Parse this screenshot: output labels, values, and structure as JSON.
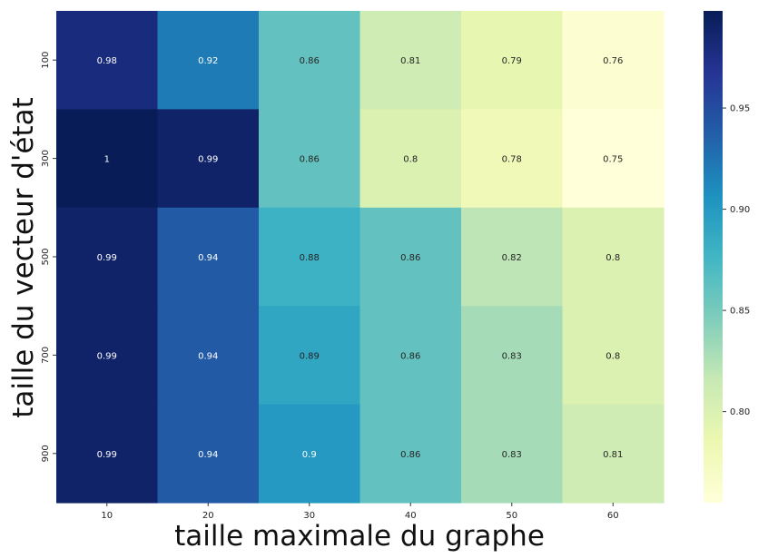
{
  "chart_data": {
    "type": "heatmap",
    "title": "",
    "xlabel": "taille maximale du graphe",
    "ylabel": "taille du vecteur d'état",
    "x_categories": [
      "10",
      "20",
      "30",
      "40",
      "50",
      "60"
    ],
    "y_categories": [
      "100",
      "300",
      "500",
      "700",
      "900"
    ],
    "values": [
      [
        0.98,
        0.92,
        0.86,
        0.81,
        0.79,
        0.76
      ],
      [
        1.0,
        0.99,
        0.86,
        0.8,
        0.78,
        0.75
      ],
      [
        0.99,
        0.94,
        0.88,
        0.86,
        0.82,
        0.8
      ],
      [
        0.99,
        0.94,
        0.89,
        0.86,
        0.83,
        0.8
      ],
      [
        0.99,
        0.94,
        0.9,
        0.86,
        0.83,
        0.81
      ]
    ],
    "cell_labels": [
      [
        "0.98",
        "0.92",
        "0.86",
        "0.81",
        "0.79",
        "0.76"
      ],
      [
        "1",
        "0.99",
        "0.86",
        "0.8",
        "0.78",
        "0.75"
      ],
      [
        "0.99",
        "0.94",
        "0.88",
        "0.86",
        "0.82",
        "0.8"
      ],
      [
        "0.99",
        "0.94",
        "0.89",
        "0.86",
        "0.83",
        "0.8"
      ],
      [
        "0.99",
        "0.94",
        "0.9",
        "0.86",
        "0.83",
        "0.81"
      ]
    ],
    "colormap": "YlGnBu",
    "color_range": [
      0.755,
      0.998
    ],
    "colorbar": {
      "ticks": [
        0.95,
        0.9,
        0.85,
        0.8
      ],
      "tick_labels": [
        "0.95",
        "0.90",
        "0.85",
        "0.80"
      ]
    },
    "grid": false,
    "legend": "colorbar-right"
  }
}
